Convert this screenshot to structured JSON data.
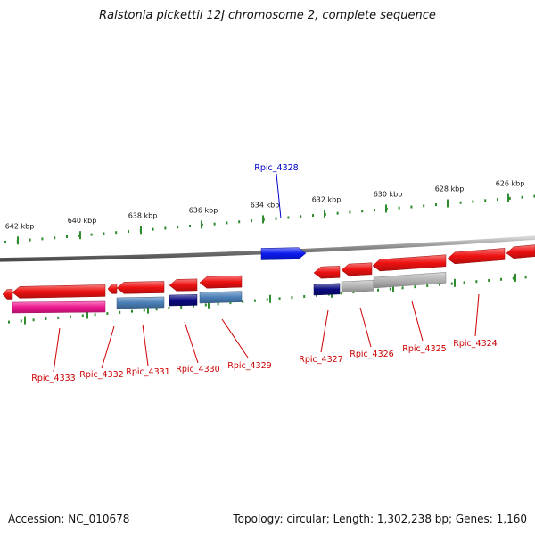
{
  "title": "Ralstonia pickettii 12J chromosome 2, complete sequence",
  "footer": {
    "accession": "Accession: NC_010678",
    "summary": "Topology: circular; Length: 1,302,238 bp; Genes: 1,160"
  },
  "colors": {
    "backbone": "#8c8c8c",
    "tick": "#2e8b2e",
    "label_red": "#cc0000",
    "label_blue": "#0000cc",
    "gene_red": "#ee1111",
    "gene_blue": "#0a1aee",
    "gene_pink": "#ee1890",
    "gene_steel": "#4a80b8",
    "gene_navy": "#0a0a80",
    "gene_gray": "#b4b4b4"
  },
  "ticks": [
    {
      "label": "642 kbp"
    },
    {
      "label": "640 kbp"
    },
    {
      "label": "638 kbp"
    },
    {
      "label": "636 kbp"
    },
    {
      "label": "634 kbp"
    },
    {
      "label": "632 kbp"
    },
    {
      "label": "630 kbp"
    },
    {
      "label": "628 kbp"
    },
    {
      "label": "626 kbp"
    }
  ],
  "genes": [
    {
      "name": "Rpic_4328",
      "strand": "+",
      "color": "gene_blue",
      "labeled": true
    },
    {
      "name": "Rpic_4333",
      "strand": "-",
      "color": "gene_red",
      "labeled": true
    },
    {
      "name": "Rpic_4332",
      "strand": "-",
      "color": "gene_red",
      "labeled": true
    },
    {
      "name": "Rpic_4331",
      "strand": "-",
      "color": "gene_red",
      "labeled": true
    },
    {
      "name": "Rpic_4330",
      "strand": "-",
      "color": "gene_red",
      "labeled": true
    },
    {
      "name": "Rpic_4329",
      "strand": "-",
      "color": "gene_red",
      "labeled": true
    },
    {
      "name": "Rpic_4327",
      "strand": "-",
      "color": "gene_red",
      "labeled": true
    },
    {
      "name": "Rpic_4326",
      "strand": "-",
      "color": "gene_red",
      "labeled": true
    },
    {
      "name": "Rpic_4325",
      "strand": "-",
      "color": "gene_red",
      "labeled": true
    },
    {
      "name": "Rpic_4324",
      "strand": "-",
      "color": "gene_red",
      "labeled": true
    },
    {
      "name": "",
      "strand": "-",
      "color": "gene_red",
      "labeled": false
    },
    {
      "name": "",
      "strand": "-",
      "color": "gene_red",
      "labeled": false
    }
  ],
  "features": [
    {
      "color": "gene_pink"
    },
    {
      "color": "gene_steel"
    },
    {
      "color": "gene_navy"
    },
    {
      "color": "gene_steel"
    },
    {
      "color": "gene_navy"
    },
    {
      "color": "gene_gray"
    },
    {
      "color": "gene_gray"
    }
  ]
}
